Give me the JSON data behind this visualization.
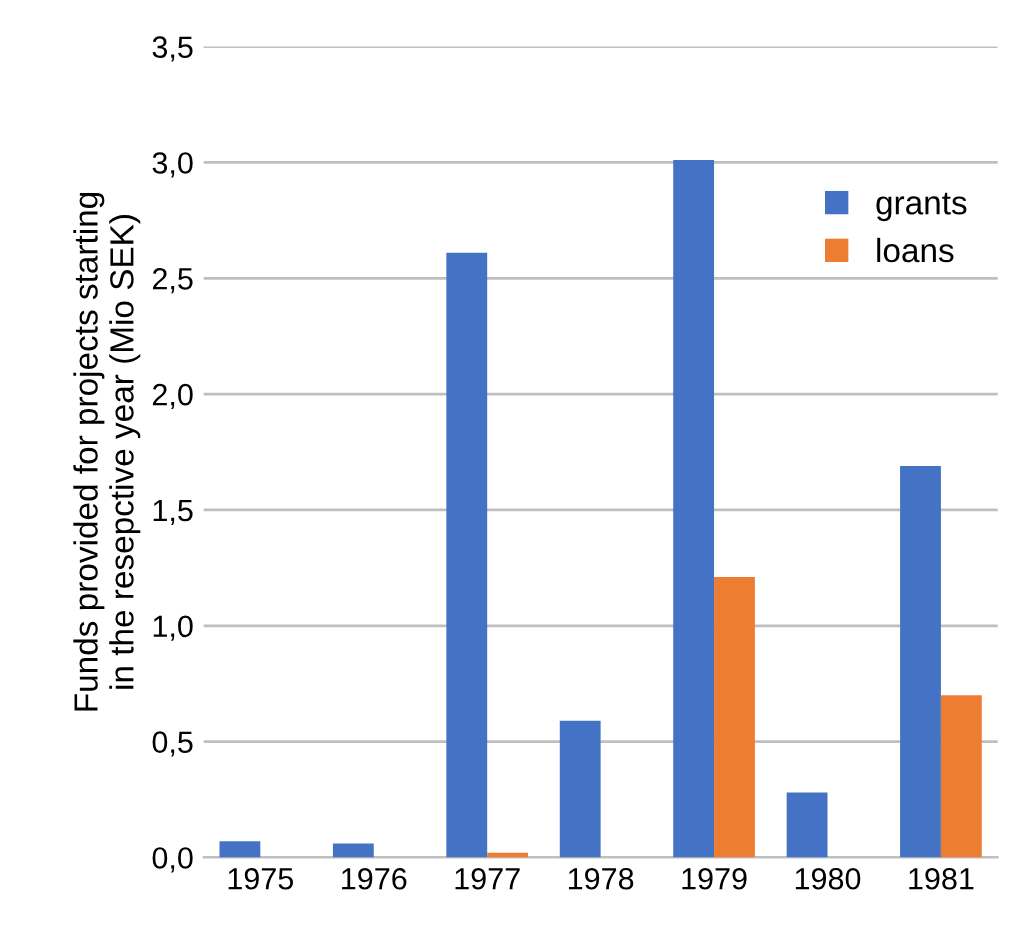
{
  "chart_data": {
    "type": "bar",
    "ylabel": "Funds provided for projects starting\nin the resepctive year (Mio SEK)",
    "categories": [
      "1975",
      "1976",
      "1977",
      "1978",
      "1979",
      "1980",
      "1981"
    ],
    "series": [
      {
        "name": "grants",
        "color": "#4472c4",
        "values": [
          0.07,
          0.06,
          2.61,
          0.59,
          3.01,
          0.28,
          1.69
        ]
      },
      {
        "name": "loans",
        "color": "#ed7d31",
        "values": [
          0,
          0,
          0.02,
          0,
          1.21,
          0,
          0.7
        ]
      }
    ],
    "ylim": [
      0,
      3.5
    ],
    "yticks": [
      {
        "value": 0,
        "label": "0,0"
      },
      {
        "value": 0.5,
        "label": "0,5"
      },
      {
        "value": 1,
        "label": "1,0"
      },
      {
        "value": 1.5,
        "label": "1,5"
      },
      {
        "value": 2,
        "label": "2,0"
      },
      {
        "value": 2.5,
        "label": "2,5"
      },
      {
        "value": 3,
        "label": "3,0"
      },
      {
        "value": 3.5,
        "label": "3,5"
      }
    ],
    "grid": "y",
    "legend": "top right"
  }
}
